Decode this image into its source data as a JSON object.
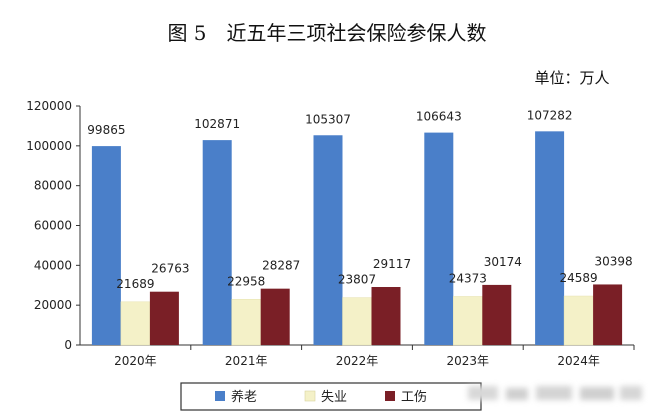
{
  "chart_data": {
    "type": "bar",
    "title": "图 5　近五年三项社会保险参保人数",
    "unit": "单位：万人",
    "categories": [
      "2020年",
      "2021年",
      "2022年",
      "2023年",
      "2024年"
    ],
    "series": [
      {
        "name": "养老",
        "color": "#4a7fc9",
        "values": [
          99865,
          102871,
          105307,
          106643,
          107282
        ]
      },
      {
        "name": "失业",
        "color": "#f4f1c8",
        "values": [
          21689,
          22958,
          23807,
          24373,
          24589
        ]
      },
      {
        "name": "工伤",
        "color": "#7a1f26",
        "values": [
          26763,
          28287,
          29117,
          30174,
          30398
        ]
      }
    ],
    "ylim": [
      0,
      120000
    ],
    "yticks": [
      0,
      20000,
      40000,
      60000,
      80000,
      100000,
      120000
    ],
    "grid": false,
    "legend": "bottom"
  }
}
